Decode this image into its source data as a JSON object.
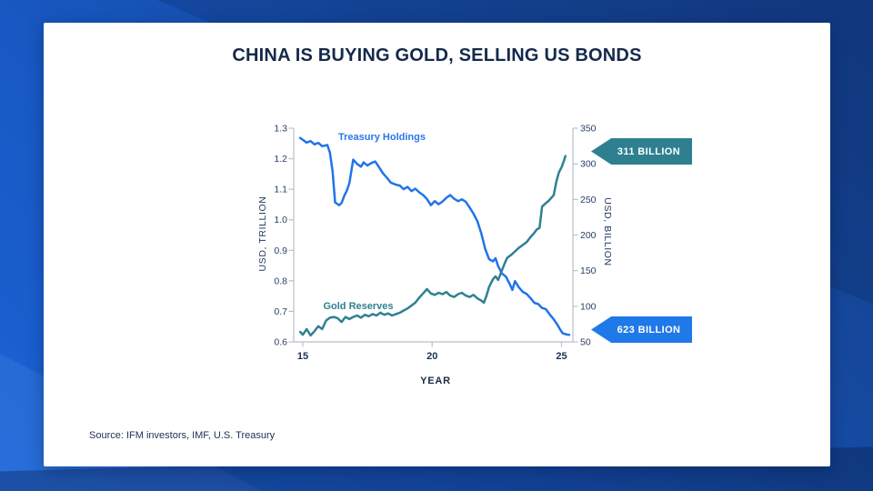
{
  "title": "CHINA IS BUYING GOLD, SELLING US BONDS",
  "source": "Source: IFM investors, IMF, U.S. Treasury",
  "callouts": {
    "gold": {
      "label": "311 BILLION",
      "color": "#2e8091"
    },
    "treasury": {
      "label": "623 BILLION",
      "color": "#2079e8"
    }
  },
  "colors": {
    "treasury_line": "#2274e8",
    "gold_line": "#2e8191",
    "axis": "#b9c0ca",
    "title_navy": "#15294b"
  },
  "chart_data": {
    "type": "line",
    "title": "CHINA IS BUYING GOLD, SELLING US BONDS",
    "xlabel": "YEAR",
    "xlim": [
      14.65,
      25.44
    ],
    "x_ticks": [
      15,
      20,
      25
    ],
    "grid": false,
    "legend_position": "inline-labels",
    "left_axis": {
      "label": "USD, TRILLION",
      "lim": [
        0.6,
        1.3
      ],
      "ticks": [
        1.3,
        1.2,
        1.1,
        1.0,
        0.9,
        0.8,
        0.7,
        0.6
      ]
    },
    "right_axis": {
      "label": "USD, BILLION",
      "lim": [
        50,
        350
      ],
      "ticks": [
        350,
        300,
        250,
        200,
        150,
        100,
        50
      ]
    },
    "series": [
      {
        "name": "Treasury Holdings",
        "axis": "left",
        "units": "USD trillion",
        "color": "#2274e8",
        "end_value_label": "623 BILLION",
        "x": [
          14.9,
          15.0,
          15.15,
          15.3,
          15.45,
          15.6,
          15.75,
          15.95,
          16.05,
          16.15,
          16.25,
          16.4,
          16.5,
          16.6,
          16.7,
          16.8,
          16.95,
          17.1,
          17.25,
          17.35,
          17.5,
          17.65,
          17.8,
          17.95,
          18.1,
          18.25,
          18.4,
          18.6,
          18.75,
          18.9,
          19.05,
          19.2,
          19.35,
          19.5,
          19.65,
          19.8,
          19.95,
          20.1,
          20.25,
          20.4,
          20.55,
          20.7,
          20.85,
          21.0,
          21.15,
          21.3,
          21.45,
          21.6,
          21.75,
          21.9,
          22.05,
          22.2,
          22.35,
          22.45,
          22.55,
          22.7,
          22.85,
          23.0,
          23.1,
          23.2,
          23.35,
          23.5,
          23.65,
          23.8,
          23.95,
          24.1,
          24.25,
          24.4,
          24.55,
          24.7,
          24.85,
          24.95,
          25.05,
          25.2,
          25.3
        ],
        "y": [
          1.268,
          1.262,
          1.253,
          1.258,
          1.247,
          1.252,
          1.241,
          1.245,
          1.22,
          1.16,
          1.057,
          1.048,
          1.055,
          1.078,
          1.095,
          1.12,
          1.197,
          1.183,
          1.174,
          1.188,
          1.178,
          1.186,
          1.191,
          1.172,
          1.152,
          1.138,
          1.122,
          1.115,
          1.112,
          1.1,
          1.108,
          1.094,
          1.102,
          1.09,
          1.081,
          1.068,
          1.048,
          1.061,
          1.051,
          1.06,
          1.072,
          1.081,
          1.069,
          1.061,
          1.067,
          1.059,
          1.04,
          1.02,
          0.995,
          0.955,
          0.905,
          0.871,
          0.864,
          0.874,
          0.848,
          0.824,
          0.814,
          0.789,
          0.77,
          0.799,
          0.779,
          0.764,
          0.757,
          0.744,
          0.728,
          0.724,
          0.711,
          0.707,
          0.689,
          0.674,
          0.655,
          0.64,
          0.628,
          0.624,
          0.623
        ]
      },
      {
        "name": "Gold Reserves",
        "axis": "right",
        "units": "USD billion",
        "color": "#2e8191",
        "end_value_label": "311 BILLION",
        "x": [
          14.9,
          15.0,
          15.15,
          15.3,
          15.45,
          15.6,
          15.75,
          15.9,
          16.05,
          16.2,
          16.35,
          16.5,
          16.65,
          16.8,
          16.95,
          17.1,
          17.25,
          17.4,
          17.55,
          17.7,
          17.85,
          18.0,
          18.15,
          18.3,
          18.45,
          18.6,
          18.75,
          18.9,
          19.05,
          19.2,
          19.35,
          19.5,
          19.65,
          19.8,
          19.95,
          20.1,
          20.25,
          20.4,
          20.55,
          20.7,
          20.85,
          21.0,
          21.15,
          21.3,
          21.45,
          21.6,
          21.75,
          21.9,
          22.0,
          22.1,
          22.2,
          22.35,
          22.45,
          22.55,
          22.65,
          22.8,
          22.9,
          23.05,
          23.2,
          23.35,
          23.5,
          23.65,
          23.8,
          23.9,
          24.05,
          24.15,
          24.25,
          24.4,
          24.5,
          24.6,
          24.7,
          24.8,
          24.9,
          25.0,
          25.1,
          25.15
        ],
        "y": [
          64,
          60,
          68,
          59,
          65,
          72,
          68,
          80,
          84,
          85,
          83,
          78,
          85,
          82,
          85,
          87,
          84,
          88,
          86,
          89,
          87,
          91,
          88,
          90,
          87,
          89,
          91,
          94,
          97,
          101,
          105,
          112,
          118,
          124,
          118,
          116,
          119,
          117,
          120,
          115,
          113,
          117,
          119,
          115,
          113,
          116,
          111,
          108,
          105,
          115,
          127,
          138,
          142,
          137,
          146,
          160,
          168,
          172,
          177,
          182,
          186,
          190,
          197,
          201,
          208,
          210,
          240,
          245,
          248,
          252,
          256,
          275,
          288,
          295,
          305,
          311
        ]
      }
    ]
  }
}
